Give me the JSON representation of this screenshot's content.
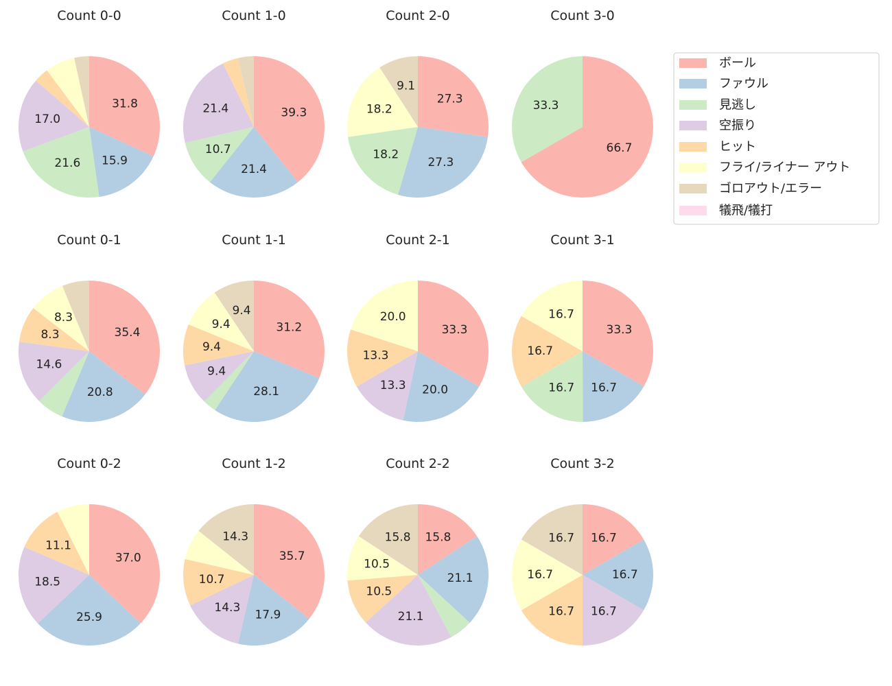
{
  "chart_data": {
    "type": "pie",
    "start_angle": "top",
    "direction": "clockwise",
    "label_format": "percent, one decimal; small slices unlabeled",
    "legend": {
      "placement": "top-right",
      "entries": [
        "ボール",
        "ファウル",
        "見逃し",
        "空振り",
        "ヒット",
        "フライ/ライナー アウト",
        "ゴロアウト/エラー",
        "犠飛/犠打"
      ],
      "colors": [
        "#fbb4ae",
        "#b3cde3",
        "#ccebc5",
        "#decbe4",
        "#fed9a6",
        "#ffffcc",
        "#e5d8bd",
        "#fddaec"
      ]
    },
    "pies": [
      {
        "title": "Count 0-0",
        "values": [
          31.8,
          15.9,
          21.6,
          17.0,
          3.4,
          6.8,
          3.4,
          0
        ]
      },
      {
        "title": "Count 1-0",
        "values": [
          39.3,
          21.4,
          10.7,
          21.4,
          3.6,
          0,
          3.6,
          0
        ]
      },
      {
        "title": "Count 2-0",
        "values": [
          27.3,
          27.3,
          18.2,
          0,
          0,
          18.2,
          9.1,
          0
        ]
      },
      {
        "title": "Count 3-0",
        "values": [
          66.7,
          0,
          33.3,
          0,
          0,
          0,
          0,
          0
        ]
      },
      {
        "title": "Count 0-1",
        "values": [
          35.4,
          20.8,
          6.2,
          14.6,
          8.3,
          8.3,
          6.2,
          0
        ]
      },
      {
        "title": "Count 1-1",
        "values": [
          31.2,
          28.1,
          3.1,
          9.4,
          9.4,
          9.4,
          9.4,
          0
        ]
      },
      {
        "title": "Count 2-1",
        "values": [
          33.3,
          20.0,
          0,
          13.3,
          13.3,
          20.0,
          0,
          0
        ]
      },
      {
        "title": "Count 3-1",
        "values": [
          33.3,
          16.7,
          16.7,
          0,
          16.7,
          16.7,
          0,
          0
        ]
      },
      {
        "title": "Count 0-2",
        "values": [
          37.0,
          25.9,
          0,
          18.5,
          11.1,
          7.4,
          0,
          0
        ]
      },
      {
        "title": "Count 1-2",
        "values": [
          35.7,
          17.9,
          0,
          14.3,
          10.7,
          7.1,
          14.3,
          0
        ]
      },
      {
        "title": "Count 2-2",
        "values": [
          15.8,
          21.1,
          5.3,
          21.1,
          10.5,
          10.5,
          15.8,
          0
        ]
      },
      {
        "title": "Count 3-2",
        "values": [
          16.7,
          16.7,
          0,
          16.7,
          16.7,
          16.7,
          16.7,
          0
        ]
      }
    ]
  }
}
